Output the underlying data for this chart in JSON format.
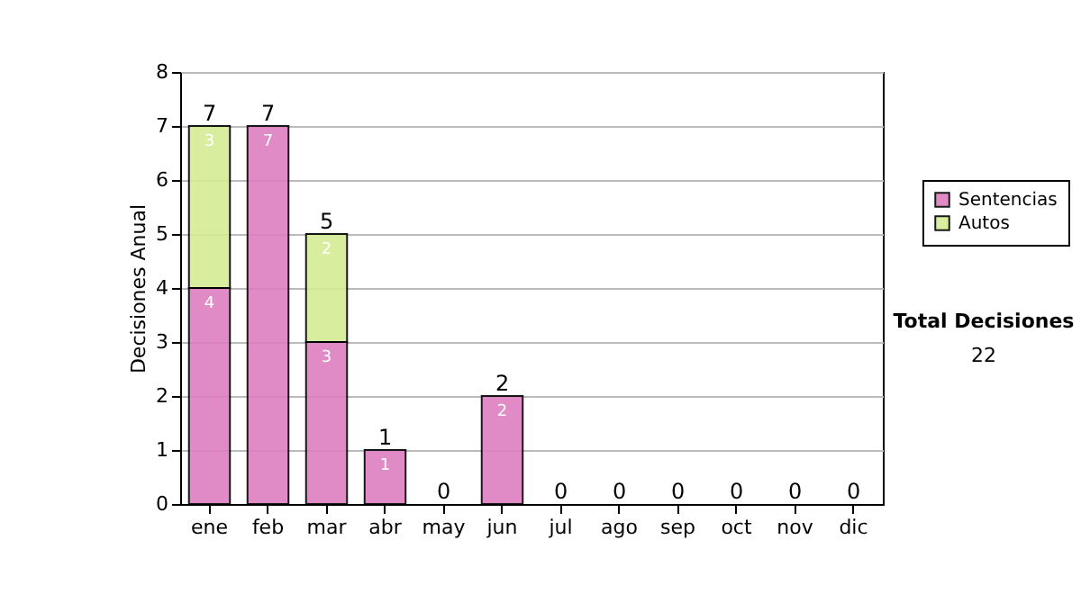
{
  "chart_data": {
    "type": "bar",
    "stacked": true,
    "ylabel": "Decisiones Anual",
    "categories": [
      "ene",
      "feb",
      "mar",
      "abr",
      "may",
      "jun",
      "jul",
      "ago",
      "sep",
      "oct",
      "nov",
      "dic"
    ],
    "series": [
      {
        "name": "Sentencias",
        "color": "#dd7fc0",
        "values": [
          4,
          7,
          3,
          1,
          0,
          2,
          0,
          0,
          0,
          0,
          0,
          0
        ],
        "value_labels": [
          "4",
          "7",
          "3",
          "1",
          null,
          "2",
          null,
          null,
          null,
          null,
          null,
          null
        ]
      },
      {
        "name": "Autos",
        "color": "#d4ec94",
        "values": [
          3,
          0,
          2,
          0,
          0,
          0,
          0,
          0,
          0,
          0,
          0,
          0
        ],
        "value_labels": [
          "3",
          null,
          "2",
          null,
          null,
          null,
          null,
          null,
          null,
          null,
          null,
          null
        ]
      }
    ],
    "totals": [
      "7",
      "7",
      "5",
      "1",
      "0",
      "2",
      "0",
      "0",
      "0",
      "0",
      "0",
      "0"
    ],
    "ylim": [
      0,
      8
    ],
    "yticks": [
      0,
      1,
      2,
      3,
      4,
      5,
      6,
      7,
      8
    ],
    "grid": "y",
    "legend": "right",
    "annotations": [
      "Total Decisiones",
      "22"
    ]
  }
}
